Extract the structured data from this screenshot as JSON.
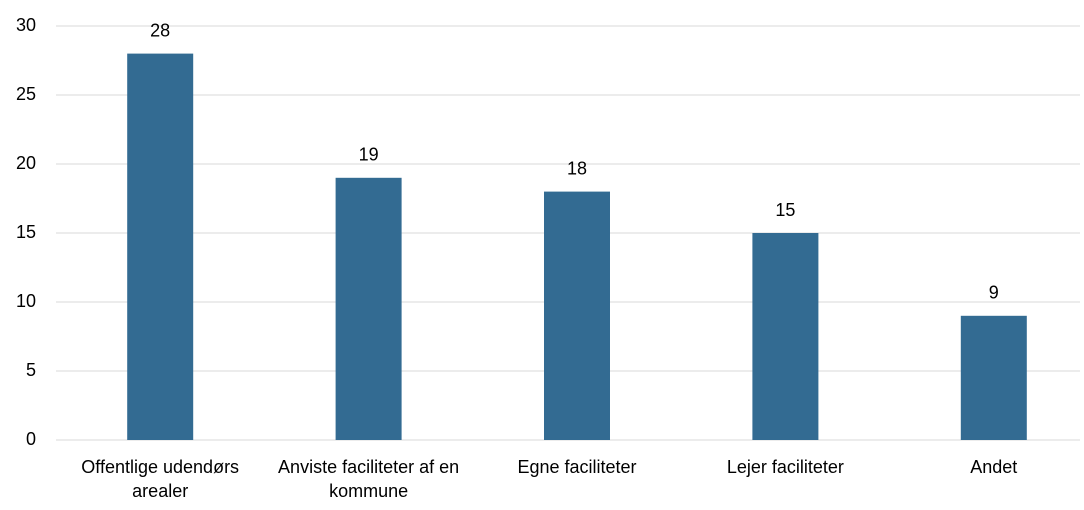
{
  "chart_data": {
    "type": "bar",
    "categories": [
      "Offentlige udendørs arealer",
      "Anviste faciliteter af en kommune",
      "Egne faciliteter",
      "Lejer faciliteter",
      "Andet"
    ],
    "values": [
      28,
      19,
      18,
      15,
      9
    ],
    "color": "#336b92",
    "ylim": [
      0,
      30
    ],
    "yticks": [
      0,
      5,
      10,
      15,
      20,
      25,
      30
    ],
    "grid": true
  }
}
